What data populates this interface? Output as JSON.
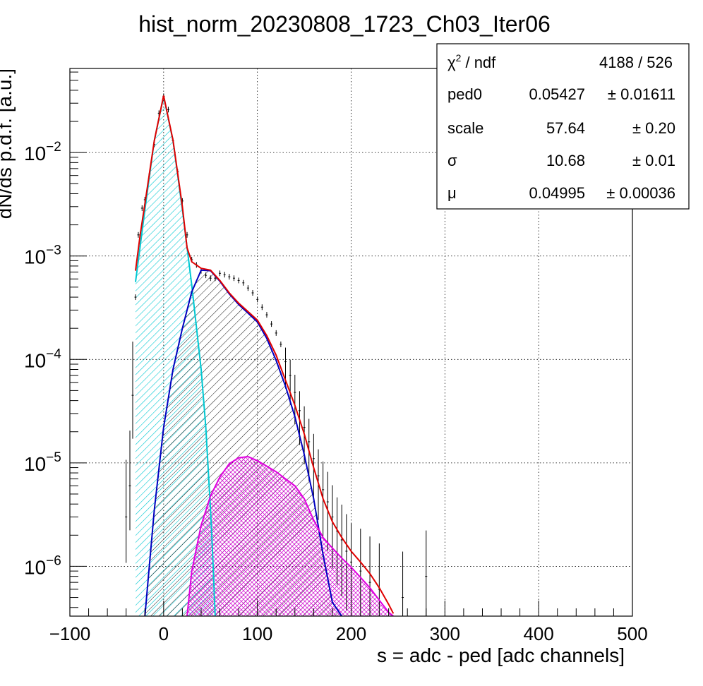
{
  "chart_data": {
    "type": "line",
    "title": "hist_norm_20230808_1723_Ch03_Iter06",
    "xlabel": "s = adc - ped [adc channels]",
    "ylabel": "dN/ds p.d.f. [a.u.]",
    "xlim": [
      -100,
      500
    ],
    "ylim": [
      3.3e-07,
      0.065
    ],
    "yscale": "log",
    "grid": true,
    "x_ticks": [
      -100,
      0,
      100,
      200,
      300,
      400,
      500
    ],
    "x_tick_labels": [
      "−100",
      "0",
      "100",
      "200",
      "300",
      "400",
      "500"
    ],
    "y_ticks": [
      1e-06,
      1e-05,
      0.0001,
      0.001,
      0.01
    ],
    "y_tick_labels": [
      {
        "base": "10",
        "exp": "−6"
      },
      {
        "base": "10",
        "exp": "−5"
      },
      {
        "base": "10",
        "exp": "−4"
      },
      {
        "base": "10",
        "exp": "−3"
      },
      {
        "base": "10",
        "exp": "−2"
      }
    ],
    "stats_box": {
      "chi2_label_base": "χ",
      "chi2_label_sup": "2",
      "chi2_label_rest": " / ndf",
      "chi2_value": "4188 / 526",
      "rows": [
        {
          "name": "ped0",
          "value": "0.05427",
          "error": "± 0.01611"
        },
        {
          "name": "scale",
          "value": "57.64",
          "error": "± 0.20"
        },
        {
          "name": "σ",
          "value": "10.68",
          "error": "± 0.01"
        },
        {
          "name": "μ",
          "value": "0.04995",
          "error": "± 0.00036"
        }
      ]
    },
    "series": [
      {
        "color": "#00c8d2",
        "style": "pedestal-fill",
        "points": [
          [
            -30,
            0.00056
          ],
          [
            -20,
            0.0028
          ],
          [
            -10,
            0.013
          ],
          [
            0,
            0.035
          ],
          [
            10,
            0.013
          ],
          [
            20,
            0.0028
          ],
          [
            30,
            0.00052
          ],
          [
            40,
            8e-05
          ],
          [
            45,
            2.2e-05
          ],
          [
            50,
            3.5e-06
          ],
          [
            52,
            1.5e-06
          ],
          [
            55,
            3.3e-07
          ]
        ]
      },
      {
        "color": "#0000c0",
        "style": "one-pe-fill",
        "points": [
          [
            -20,
            3.3e-07
          ],
          [
            -10,
            3.5e-06
          ],
          [
            0,
            2.2e-05
          ],
          [
            10,
            8e-05
          ],
          [
            20,
            0.0002
          ],
          [
            30,
            0.00045
          ],
          [
            40,
            0.00073
          ],
          [
            50,
            0.00072
          ],
          [
            60,
            0.00057
          ],
          [
            70,
            0.00043
          ],
          [
            80,
            0.00034
          ],
          [
            90,
            0.00028
          ],
          [
            100,
            0.00023
          ],
          [
            110,
            0.00016
          ],
          [
            120,
            9.8e-05
          ],
          [
            130,
            5.5e-05
          ],
          [
            140,
            2.8e-05
          ],
          [
            150,
            1.2e-05
          ],
          [
            160,
            4.5e-06
          ],
          [
            170,
            1.3e-06
          ],
          [
            180,
            4.5e-07
          ],
          [
            190,
            3.3e-07
          ]
        ]
      },
      {
        "color": "#e000e0",
        "style": "two-pe-fill",
        "points": [
          [
            25,
            3.3e-07
          ],
          [
            30,
            9e-07
          ],
          [
            40,
            2.5e-06
          ],
          [
            50,
            4.8e-06
          ],
          [
            60,
            7.3e-06
          ],
          [
            70,
            9.8e-06
          ],
          [
            80,
            1.12e-05
          ],
          [
            90,
            1.15e-05
          ],
          [
            100,
            1.05e-05
          ],
          [
            110,
            9.3e-06
          ],
          [
            120,
            8.2e-06
          ],
          [
            130,
            7e-06
          ],
          [
            140,
            6e-06
          ],
          [
            150,
            4.5e-06
          ],
          [
            160,
            2.8e-06
          ],
          [
            170,
            1.9e-06
          ],
          [
            180,
            1.5e-06
          ],
          [
            190,
            1.2e-06
          ],
          [
            200,
            9.8e-07
          ],
          [
            210,
            7.8e-07
          ],
          [
            220,
            6.2e-07
          ],
          [
            230,
            4.7e-07
          ],
          [
            240,
            3.6e-07
          ],
          [
            245,
            3.3e-07
          ]
        ]
      },
      {
        "color": "#e00000",
        "style": "total-fit",
        "points": [
          [
            -30,
            0.00072
          ],
          [
            -25,
            0.0016
          ],
          [
            -20,
            0.0032
          ],
          [
            -10,
            0.013
          ],
          [
            0,
            0.0355
          ],
          [
            10,
            0.0132
          ],
          [
            20,
            0.003
          ],
          [
            25,
            0.0012
          ],
          [
            30,
            0.00088
          ],
          [
            40,
            0.00076
          ],
          [
            50,
            0.00073
          ],
          [
            60,
            0.00058
          ],
          [
            70,
            0.00044
          ],
          [
            80,
            0.00035
          ],
          [
            90,
            0.00029
          ],
          [
            100,
            0.00024
          ],
          [
            110,
            0.00017
          ],
          [
            120,
            0.00011
          ],
          [
            130,
            6.3e-05
          ],
          [
            140,
            3.6e-05
          ],
          [
            150,
            1.9e-05
          ],
          [
            160,
            9e-06
          ],
          [
            170,
            4.5e-06
          ],
          [
            180,
            2.7e-06
          ],
          [
            190,
            1.9e-06
          ],
          [
            200,
            1.4e-06
          ],
          [
            210,
            1.1e-06
          ],
          [
            220,
            8.5e-07
          ],
          [
            230,
            6.2e-07
          ],
          [
            240,
            4.3e-07
          ],
          [
            245,
            3.5e-07
          ]
        ]
      },
      {
        "color": "#000000",
        "style": "data-errorbars",
        "points": [
          [
            -40,
            3e-06
          ],
          [
            -36,
            6e-06
          ],
          [
            -33,
            4.5e-05
          ],
          [
            -30,
            0.0004
          ],
          [
            -27,
            0.0016
          ],
          [
            -23,
            0.0029
          ],
          [
            -20,
            0.0035
          ],
          [
            -15,
            0.0062
          ],
          [
            -10,
            0.012
          ],
          [
            -5,
            0.024
          ],
          [
            0,
            0.035
          ],
          [
            5,
            0.026
          ],
          [
            10,
            0.013
          ],
          [
            15,
            0.0065
          ],
          [
            20,
            0.0034
          ],
          [
            25,
            0.0016
          ],
          [
            30,
            0.00092
          ],
          [
            35,
            0.00082
          ],
          [
            40,
            0.00072
          ],
          [
            45,
            0.00065
          ],
          [
            50,
            0.00061
          ],
          [
            55,
            0.00061
          ],
          [
            60,
            0.00068
          ],
          [
            65,
            0.00066
          ],
          [
            70,
            0.00063
          ],
          [
            75,
            0.00061
          ],
          [
            80,
            0.00058
          ],
          [
            85,
            0.00055
          ],
          [
            90,
            0.00049
          ],
          [
            95,
            0.00044
          ],
          [
            100,
            0.00038
          ],
          [
            105,
            0.00032
          ],
          [
            110,
            0.00027
          ],
          [
            115,
            0.00022
          ],
          [
            120,
            0.00018
          ],
          [
            125,
            0.00014
          ],
          [
            130,
            9.5e-05
          ],
          [
            135,
            7e-05
          ],
          [
            140,
            4.8e-05
          ],
          [
            145,
            3.2e-05
          ],
          [
            150,
            2.2e-05
          ],
          [
            155,
            1.6e-05
          ],
          [
            160,
            1.1e-05
          ],
          [
            165,
            7.5e-06
          ],
          [
            170,
            5.5e-06
          ],
          [
            175,
            4.2e-06
          ],
          [
            180,
            3e-06
          ],
          [
            185,
            2.2e-06
          ],
          [
            190,
            1.8e-06
          ],
          [
            195,
            1.4e-06
          ],
          [
            200,
            1.1e-06
          ],
          [
            210,
            9e-07
          ],
          [
            220,
            7e-07
          ],
          [
            230,
            6e-07
          ],
          [
            255,
            5e-07
          ],
          [
            280,
            8e-07
          ]
        ]
      }
    ]
  }
}
